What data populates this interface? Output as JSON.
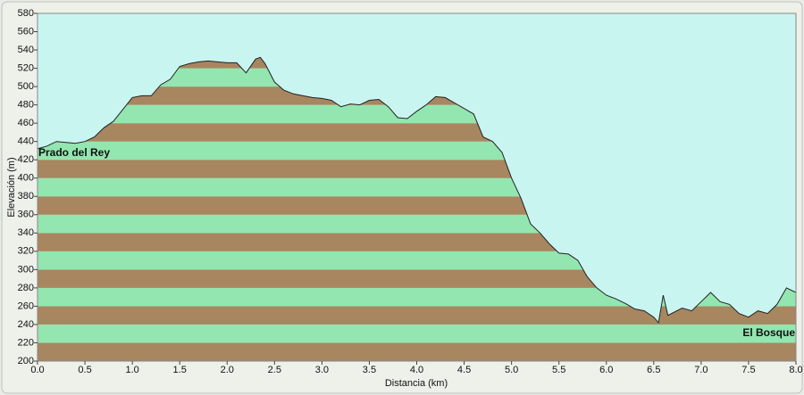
{
  "chart_data": {
    "type": "area",
    "x_label": "Distancia   (km)",
    "y_label": "Elevación (m)",
    "annotations": [
      "Prado del Rey",
      "El Bosque"
    ],
    "x": [
      0,
      0.1,
      0.2,
      0.3,
      0.4,
      0.5,
      0.6,
      0.7,
      0.8,
      0.9,
      1.0,
      1.1,
      1.2,
      1.3,
      1.4,
      1.5,
      1.6,
      1.7,
      1.8,
      1.9,
      2.0,
      2.1,
      2.2,
      2.3,
      2.35,
      2.4,
      2.5,
      2.6,
      2.7,
      2.8,
      2.9,
      3.0,
      3.1,
      3.2,
      3.3,
      3.4,
      3.5,
      3.6,
      3.7,
      3.8,
      3.9,
      4.0,
      4.1,
      4.2,
      4.3,
      4.4,
      4.5,
      4.6,
      4.7,
      4.8,
      4.9,
      5.0,
      5.1,
      5.2,
      5.3,
      5.4,
      5.5,
      5.6,
      5.7,
      5.8,
      5.9,
      6.0,
      6.1,
      6.2,
      6.3,
      6.4,
      6.5,
      6.55,
      6.6,
      6.65,
      6.8,
      6.9,
      7.0,
      7.1,
      7.2,
      7.3,
      7.4,
      7.5,
      7.6,
      7.7,
      7.8,
      7.9,
      8.0
    ],
    "y": [
      432,
      435,
      440,
      439,
      438,
      440,
      445,
      455,
      462,
      475,
      488,
      490,
      490,
      502,
      508,
      522,
      525,
      527,
      528,
      527,
      526,
      526,
      515,
      530,
      532,
      525,
      505,
      496,
      492,
      490,
      488,
      487,
      485,
      478,
      481,
      480,
      485,
      486,
      478,
      466,
      465,
      473,
      480,
      489,
      488,
      482,
      476,
      470,
      445,
      440,
      428,
      400,
      378,
      350,
      340,
      328,
      318,
      317,
      310,
      292,
      280,
      272,
      268,
      263,
      257,
      255,
      248,
      242,
      272,
      250,
      258,
      255,
      265,
      275,
      265,
      262,
      252,
      248,
      255,
      252,
      262,
      280,
      275
    ],
    "xlim": [
      0,
      8
    ],
    "ylim": [
      200,
      580
    ],
    "xticks": [
      {
        "value": 0,
        "label": "0.0"
      },
      0.5,
      {
        "value": 1,
        "label": "1.0"
      },
      1.5,
      {
        "value": 2,
        "label": "2.0"
      },
      2.5,
      {
        "value": 3,
        "label": "3.0"
      },
      3.5,
      {
        "value": 4,
        "label": "4.0"
      },
      4.5,
      {
        "value": 5,
        "label": "5.0"
      },
      5.5,
      {
        "value": 6,
        "label": "6.0"
      },
      6.5,
      {
        "value": 7,
        "label": "7.0"
      },
      7.5,
      {
        "value": 8,
        "label": "8.0"
      }
    ],
    "yticks": [
      200,
      220,
      240,
      260,
      280,
      300,
      320,
      340,
      360,
      380,
      400,
      420,
      440,
      460,
      480,
      500,
      520,
      540,
      560,
      580
    ],
    "band_colors": [
      "#a88660",
      "#93e6b0"
    ],
    "sky_color": "#c9f5f1",
    "line_color": "#222222"
  }
}
